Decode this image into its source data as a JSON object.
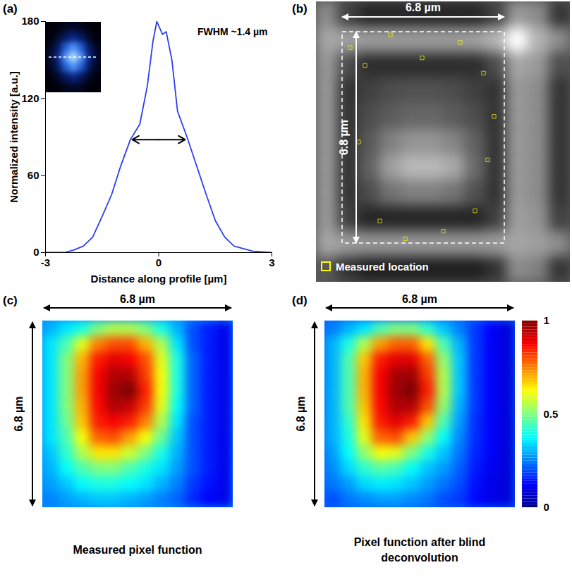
{
  "chart_data": [
    {
      "type": "line",
      "label": "(a)",
      "x": [
        -3,
        -2.5,
        -2.25,
        -2,
        -1.75,
        -1.5,
        -1.25,
        -1,
        -0.75,
        -0.5,
        -0.3,
        -0.15,
        -0.05,
        0.1,
        0.2,
        0.35,
        0.5,
        0.75,
        1,
        1.25,
        1.5,
        1.75,
        2,
        2.5,
        3
      ],
      "values": [
        0,
        0,
        2,
        5,
        12,
        28,
        45,
        68,
        88,
        100,
        130,
        165,
        180,
        170,
        172,
        150,
        110,
        90,
        68,
        46,
        25,
        12,
        5,
        1,
        0
      ],
      "color": "#2b3ff0",
      "xlim": [
        -3,
        3
      ],
      "xticks": [
        -3,
        0,
        3
      ],
      "ylim": [
        0,
        180
      ],
      "yticks": [
        0,
        60,
        120,
        180
      ],
      "grid": false,
      "x_label": "Distance along profile [µm]",
      "y_label": "Normalized intensity [a.u.]",
      "annotations": [
        {
          "text": "FWHM ~1.4 µm",
          "x1": -0.7,
          "x2": 0.7,
          "y": 88
        }
      ],
      "inset": {
        "type": "heatmap",
        "color_range": [
          0,
          1
        ],
        "colors": [
          "#000008",
          "#0a2a9a",
          "#2f7dff",
          "#bfe8ff"
        ],
        "cells": [
          [
            0,
            0,
            0.05,
            0.08,
            0.05,
            0,
            0
          ],
          [
            0,
            0.08,
            0.2,
            0.3,
            0.2,
            0.08,
            0
          ],
          [
            0.05,
            0.2,
            0.55,
            0.75,
            0.55,
            0.2,
            0.05
          ],
          [
            0.08,
            0.3,
            0.75,
            1.0,
            0.75,
            0.3,
            0.08
          ],
          [
            0.05,
            0.2,
            0.55,
            0.75,
            0.55,
            0.2,
            0.05
          ],
          [
            0,
            0.08,
            0.2,
            0.3,
            0.2,
            0.08,
            0
          ],
          [
            0,
            0,
            0.05,
            0.08,
            0.05,
            0,
            0
          ]
        ]
      }
    },
    {
      "type": "heatmap",
      "label": "(b)",
      "width_label": "6.8 µm",
      "height_label": "6.8 µm",
      "color_range": [
        0,
        1
      ],
      "colors": [
        "#000000",
        "#ffffff"
      ],
      "cells": [
        [
          0.55,
          0.25,
          0.15,
          0.15,
          0.15,
          0.15,
          0.15,
          0.15,
          0.25,
          0.6,
          0.55,
          0.2
        ],
        [
          0.65,
          0.62,
          0.6,
          0.6,
          0.6,
          0.6,
          0.6,
          0.62,
          0.7,
          1.0,
          0.7,
          0.55
        ],
        [
          0.6,
          0.3,
          0.18,
          0.18,
          0.18,
          0.18,
          0.18,
          0.18,
          0.3,
          0.65,
          0.6,
          0.3
        ],
        [
          0.6,
          0.2,
          0.25,
          0.3,
          0.32,
          0.32,
          0.3,
          0.25,
          0.2,
          0.6,
          0.55,
          0.2
        ],
        [
          0.6,
          0.2,
          0.3,
          0.36,
          0.4,
          0.4,
          0.36,
          0.3,
          0.2,
          0.6,
          0.55,
          0.2
        ],
        [
          0.6,
          0.2,
          0.35,
          0.5,
          0.58,
          0.58,
          0.52,
          0.38,
          0.2,
          0.6,
          0.55,
          0.2
        ],
        [
          0.6,
          0.2,
          0.38,
          0.62,
          0.72,
          0.72,
          0.66,
          0.42,
          0.2,
          0.6,
          0.55,
          0.2
        ],
        [
          0.6,
          0.2,
          0.3,
          0.45,
          0.5,
          0.5,
          0.46,
          0.32,
          0.2,
          0.6,
          0.55,
          0.2
        ],
        [
          0.6,
          0.25,
          0.15,
          0.15,
          0.15,
          0.15,
          0.15,
          0.15,
          0.25,
          0.62,
          0.58,
          0.25
        ],
        [
          0.65,
          0.6,
          0.58,
          0.58,
          0.58,
          0.58,
          0.58,
          0.58,
          0.6,
          0.65,
          0.62,
          0.55
        ],
        [
          0.35,
          0.2,
          0.12,
          0.12,
          0.12,
          0.12,
          0.12,
          0.12,
          0.2,
          0.55,
          0.5,
          0.2
        ]
      ],
      "series": [
        {
          "name": "Measured location",
          "type": "scatter",
          "marker": "square",
          "color": "#ffff00",
          "x": [
            1.6,
            2.3,
            3.5,
            5.0,
            6.8,
            7.9,
            8.4,
            2.0,
            8.1,
            3.0,
            6.0,
            7.5,
            4.2
          ],
          "y": [
            1.8,
            2.5,
            1.3,
            2.2,
            1.6,
            2.8,
            4.5,
            5.5,
            6.2,
            8.6,
            9.0,
            8.2,
            9.3
          ]
        }
      ],
      "legend": "lower left"
    },
    {
      "type": "heatmap",
      "label": "(c)",
      "width_label": "6.8 µm",
      "height_label": "6.8 µm",
      "caption": "Measured pixel function",
      "color_range": [
        0,
        1
      ],
      "colors": [
        "#00008f",
        "#0000ff",
        "#0080ff",
        "#00ffff",
        "#80ff80",
        "#ffff00",
        "#ff8000",
        "#ff0000",
        "#800000"
      ],
      "cells": [
        [
          0.3,
          0.35,
          0.4,
          0.5,
          0.55,
          0.55,
          0.5,
          0.4,
          0.3,
          0.2,
          0.15,
          0.1
        ],
        [
          0.35,
          0.45,
          0.6,
          0.75,
          0.8,
          0.8,
          0.7,
          0.55,
          0.35,
          0.2,
          0.15,
          0.1
        ],
        [
          0.35,
          0.5,
          0.7,
          0.85,
          0.9,
          0.88,
          0.8,
          0.6,
          0.4,
          0.22,
          0.15,
          0.1
        ],
        [
          0.35,
          0.5,
          0.72,
          0.88,
          0.95,
          0.95,
          0.82,
          0.62,
          0.4,
          0.22,
          0.15,
          0.1
        ],
        [
          0.35,
          0.5,
          0.72,
          0.88,
          0.97,
          1.0,
          0.85,
          0.62,
          0.4,
          0.22,
          0.15,
          0.1
        ],
        [
          0.35,
          0.5,
          0.7,
          0.87,
          0.95,
          0.93,
          0.82,
          0.6,
          0.38,
          0.22,
          0.15,
          0.1
        ],
        [
          0.35,
          0.48,
          0.68,
          0.85,
          0.88,
          0.85,
          0.75,
          0.55,
          0.35,
          0.2,
          0.15,
          0.1
        ],
        [
          0.35,
          0.45,
          0.62,
          0.78,
          0.8,
          0.72,
          0.62,
          0.48,
          0.32,
          0.2,
          0.15,
          0.1
        ],
        [
          0.32,
          0.42,
          0.55,
          0.65,
          0.65,
          0.58,
          0.5,
          0.4,
          0.3,
          0.2,
          0.15,
          0.1
        ],
        [
          0.3,
          0.38,
          0.45,
          0.5,
          0.5,
          0.45,
          0.4,
          0.35,
          0.28,
          0.2,
          0.15,
          0.1
        ],
        [
          0.28,
          0.32,
          0.38,
          0.4,
          0.4,
          0.38,
          0.35,
          0.3,
          0.25,
          0.18,
          0.14,
          0.1
        ],
        [
          0.25,
          0.28,
          0.3,
          0.32,
          0.32,
          0.3,
          0.28,
          0.25,
          0.22,
          0.16,
          0.12,
          0.1
        ]
      ]
    },
    {
      "type": "heatmap",
      "label": "(d)",
      "width_label": "6.8 µm",
      "height_label": "6.8 µm",
      "caption": "Pixel function after blind deconvolution",
      "color_range": [
        0,
        1
      ],
      "colors": [
        "#00008f",
        "#0000ff",
        "#0080ff",
        "#00ffff",
        "#80ff80",
        "#ffff00",
        "#ff8000",
        "#ff0000",
        "#800000"
      ],
      "colorbar": {
        "range": [
          0,
          1
        ],
        "ticks": [
          0,
          0.5,
          1
        ]
      },
      "cells": [
        [
          0.25,
          0.3,
          0.35,
          0.45,
          0.5,
          0.5,
          0.42,
          0.32,
          0.25,
          0.18,
          0.12,
          0.08
        ],
        [
          0.3,
          0.4,
          0.55,
          0.72,
          0.78,
          0.78,
          0.65,
          0.45,
          0.3,
          0.18,
          0.12,
          0.08
        ],
        [
          0.3,
          0.45,
          0.68,
          0.85,
          0.9,
          0.9,
          0.78,
          0.52,
          0.32,
          0.18,
          0.12,
          0.08
        ],
        [
          0.3,
          0.45,
          0.7,
          0.88,
          0.96,
          0.97,
          0.82,
          0.55,
          0.32,
          0.18,
          0.12,
          0.08
        ],
        [
          0.3,
          0.45,
          0.7,
          0.88,
          0.97,
          1.0,
          0.85,
          0.55,
          0.32,
          0.18,
          0.12,
          0.08
        ],
        [
          0.3,
          0.45,
          0.68,
          0.87,
          0.95,
          0.95,
          0.8,
          0.52,
          0.3,
          0.18,
          0.12,
          0.08
        ],
        [
          0.3,
          0.42,
          0.65,
          0.85,
          0.9,
          0.85,
          0.68,
          0.45,
          0.28,
          0.17,
          0.12,
          0.08
        ],
        [
          0.3,
          0.4,
          0.6,
          0.78,
          0.8,
          0.68,
          0.52,
          0.38,
          0.26,
          0.17,
          0.12,
          0.08
        ],
        [
          0.28,
          0.38,
          0.52,
          0.62,
          0.6,
          0.5,
          0.4,
          0.32,
          0.24,
          0.16,
          0.12,
          0.08
        ],
        [
          0.26,
          0.34,
          0.42,
          0.46,
          0.44,
          0.38,
          0.32,
          0.28,
          0.22,
          0.15,
          0.11,
          0.08
        ],
        [
          0.24,
          0.28,
          0.34,
          0.36,
          0.35,
          0.32,
          0.28,
          0.24,
          0.2,
          0.14,
          0.1,
          0.08
        ],
        [
          0.2,
          0.24,
          0.26,
          0.28,
          0.28,
          0.26,
          0.24,
          0.2,
          0.18,
          0.13,
          0.1,
          0.08
        ]
      ]
    }
  ]
}
